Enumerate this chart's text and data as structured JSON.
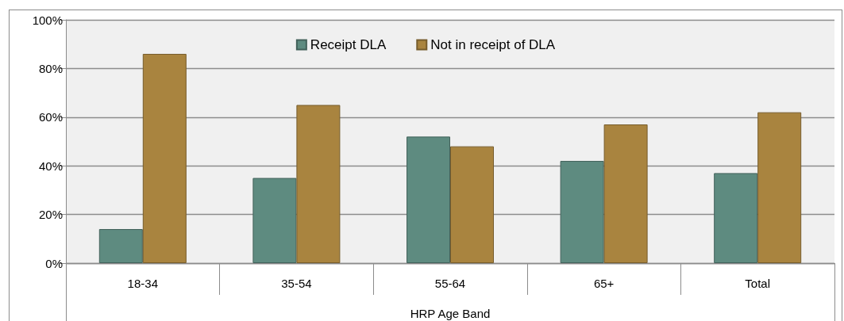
{
  "chart_data": {
    "type": "bar",
    "xlabel": "HRP Age Band",
    "categories": [
      "18-34",
      "35-54",
      "55-64",
      "65+",
      "Total"
    ],
    "series": [
      {
        "name": "Receipt DLA",
        "color": "#5e8b80",
        "values": [
          14,
          35,
          52,
          42,
          37
        ]
      },
      {
        "name": "Not in receipt of DLA",
        "color": "#a9843f",
        "values": [
          86,
          65,
          48,
          57,
          62
        ]
      }
    ],
    "ylim": [
      0,
      100
    ],
    "yticks": [
      {
        "value": 0,
        "label": "0%"
      },
      {
        "value": 20,
        "label": "20%"
      },
      {
        "value": 40,
        "label": "40%"
      },
      {
        "value": 60,
        "label": "60%"
      },
      {
        "value": 80,
        "label": "80%"
      },
      {
        "value": 100,
        "label": "100%"
      }
    ],
    "grid": "y",
    "legend": "top"
  }
}
